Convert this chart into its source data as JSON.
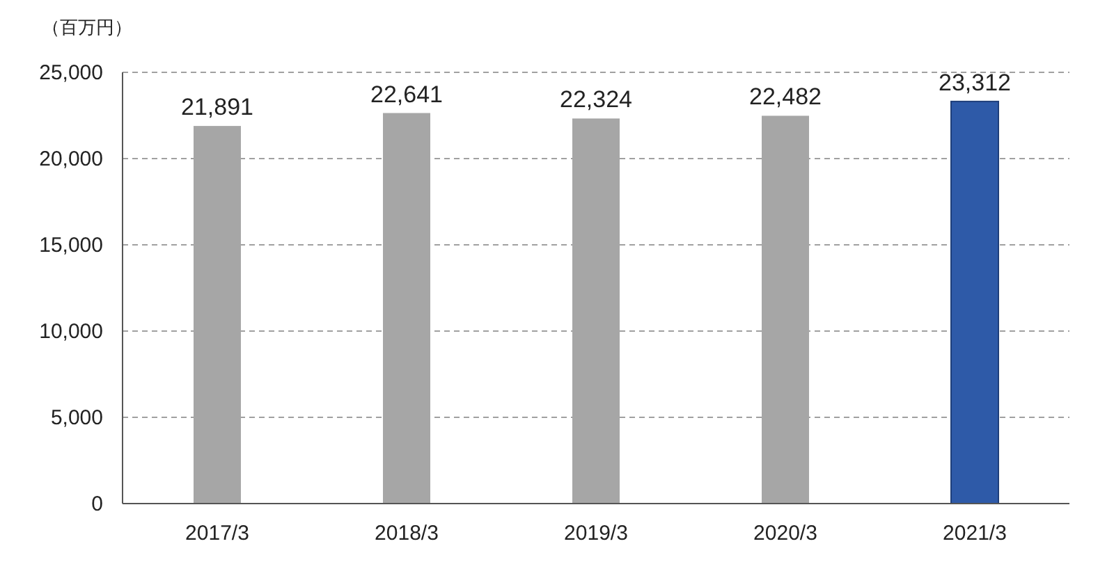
{
  "chart_data": {
    "type": "bar",
    "ylabel": "（百万円）",
    "categories": [
      "2017/3",
      "2018/3",
      "2019/3",
      "2020/3",
      "2021/3"
    ],
    "values": [
      21891,
      22641,
      22324,
      22482,
      23312
    ],
    "value_labels": [
      "21,891",
      "22,641",
      "22,324",
      "22,482",
      "23,312"
    ],
    "colors": [
      "#a6a6a6",
      "#a6a6a6",
      "#a6a6a6",
      "#a6a6a6",
      "#2e5aa8"
    ],
    "ylim": [
      0,
      25000
    ],
    "yticks": [
      {
        "value": 0,
        "label": "0"
      },
      {
        "value": 5000,
        "label": "5,000"
      },
      {
        "value": 10000,
        "label": "10,000"
      },
      {
        "value": 15000,
        "label": "15,000"
      },
      {
        "value": 20000,
        "label": "20,000"
      },
      {
        "value": 25000,
        "label": "25,000"
      }
    ],
    "grid": "y"
  }
}
